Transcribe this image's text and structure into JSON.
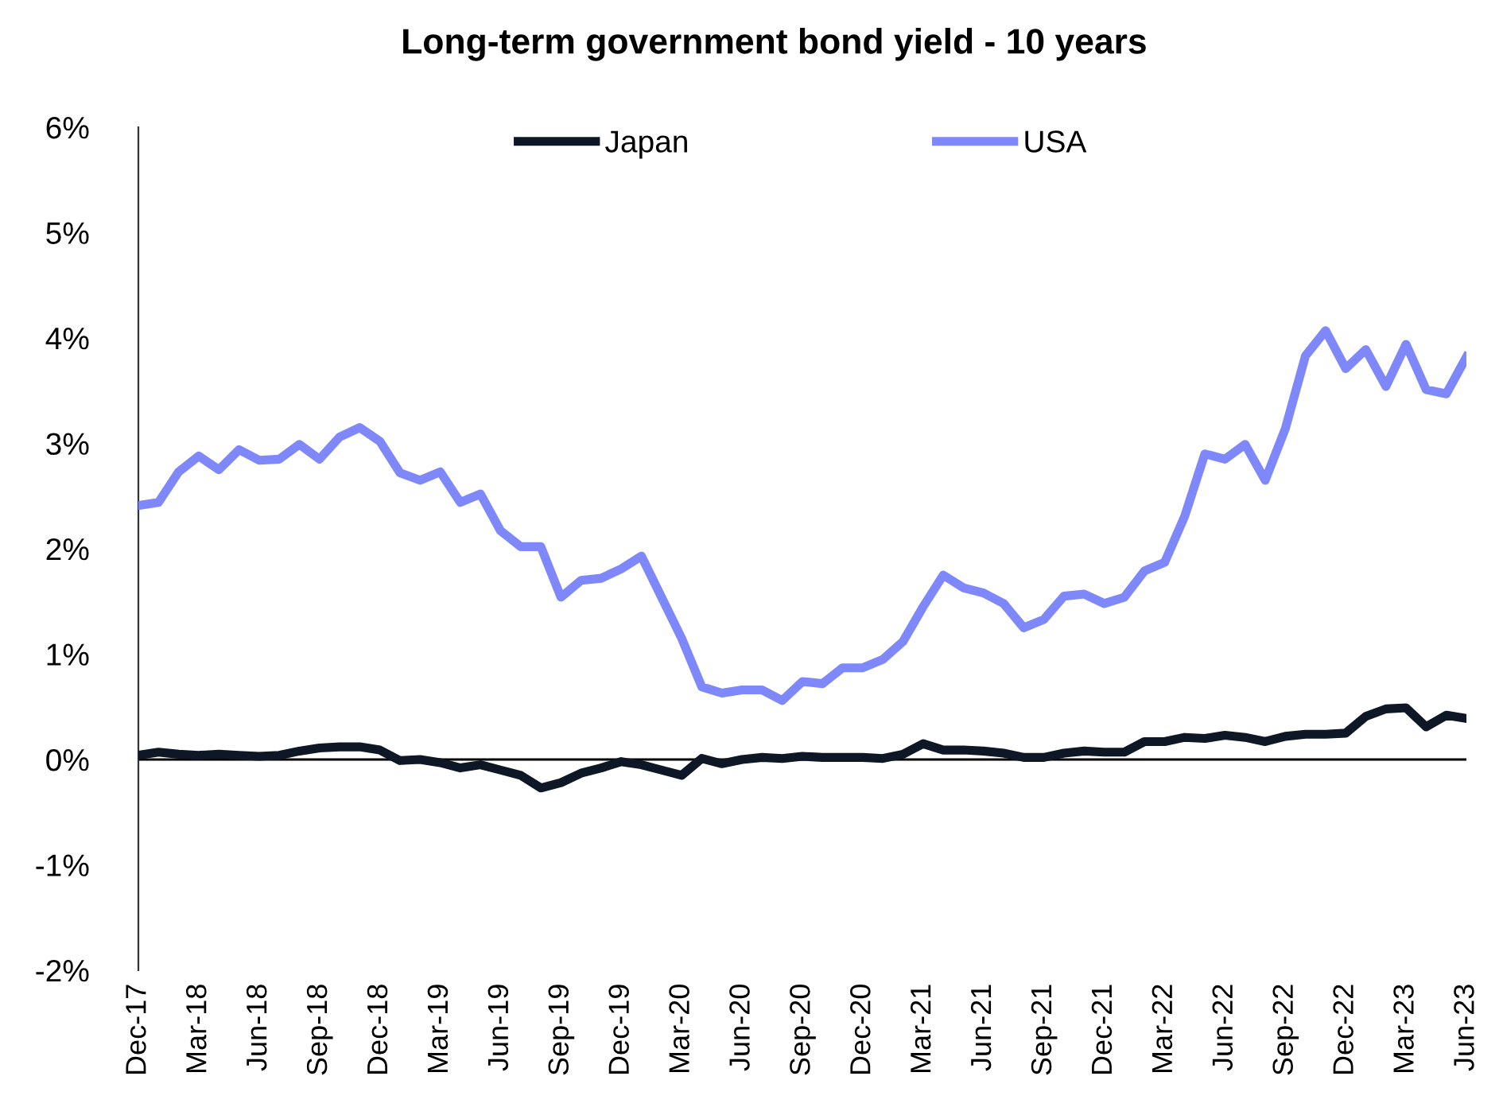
{
  "chart_data": {
    "type": "line",
    "title": "Long-term government bond yield - 10 years",
    "categories": [
      "Dec-17",
      null,
      null,
      "Mar-18",
      null,
      null,
      "Jun-18",
      null,
      null,
      "Sep-18",
      null,
      null,
      "Dec-18",
      null,
      null,
      "Mar-19",
      null,
      null,
      "Jun-19",
      null,
      null,
      "Sep-19",
      null,
      null,
      "Dec-19",
      null,
      null,
      "Mar-20",
      null,
      null,
      "Jun-20",
      null,
      null,
      "Sep-20",
      null,
      null,
      "Dec-20",
      null,
      null,
      "Mar-21",
      null,
      null,
      "Jun-21",
      null,
      null,
      "Sep-21",
      null,
      null,
      "Dec-21",
      null,
      null,
      "Mar-22",
      null,
      null,
      "Jun-22",
      null,
      null,
      "Sep-22",
      null,
      null,
      "Dec-22",
      null,
      null,
      "Mar-23",
      null,
      null,
      "Jun-23"
    ],
    "series": [
      {
        "name": "Japan",
        "color": "#0d1726",
        "values": [
          0.04,
          0.07,
          0.05,
          0.04,
          0.05,
          0.04,
          0.03,
          0.04,
          0.08,
          0.11,
          0.12,
          0.12,
          0.09,
          -0.01,
          0.0,
          -0.03,
          -0.08,
          -0.05,
          -0.1,
          -0.15,
          -0.27,
          -0.22,
          -0.13,
          -0.08,
          -0.02,
          -0.05,
          -0.1,
          -0.15,
          0.01,
          -0.04,
          0.0,
          0.02,
          0.01,
          0.03,
          0.02,
          0.02,
          0.02,
          0.01,
          0.05,
          0.15,
          0.09,
          0.09,
          0.08,
          0.06,
          0.02,
          0.02,
          0.06,
          0.08,
          0.07,
          0.07,
          0.17,
          0.17,
          0.21,
          0.2,
          0.23,
          0.21,
          0.17,
          0.22,
          0.24,
          0.24,
          0.25,
          0.41,
          0.48,
          0.49,
          0.31,
          0.42,
          0.39
        ]
      },
      {
        "name": "USA",
        "color": "#7f88fb",
        "values": [
          2.41,
          2.44,
          2.73,
          2.88,
          2.75,
          2.94,
          2.84,
          2.85,
          2.99,
          2.85,
          3.06,
          3.15,
          3.02,
          2.72,
          2.65,
          2.73,
          2.44,
          2.52,
          2.17,
          2.02,
          2.02,
          1.54,
          1.7,
          1.72,
          1.81,
          1.93,
          1.54,
          1.15,
          0.69,
          0.63,
          0.66,
          0.66,
          0.56,
          0.74,
          0.72,
          0.87,
          0.87,
          0.95,
          1.12,
          1.45,
          1.75,
          1.63,
          1.58,
          1.48,
          1.25,
          1.33,
          1.55,
          1.57,
          1.48,
          1.54,
          1.79,
          1.87,
          2.31,
          2.9,
          2.85,
          2.99,
          2.65,
          3.14,
          3.83,
          4.07,
          3.71,
          3.89,
          3.54,
          3.94,
          3.51,
          3.47,
          3.82
        ]
      }
    ],
    "ylim": [
      -2,
      6
    ],
    "yticks": [
      {
        "value": -2,
        "label": "-2%"
      },
      {
        "value": -1,
        "label": "-1%"
      },
      {
        "value": 0,
        "label": "0%"
      },
      {
        "value": 1,
        "label": "1%"
      },
      {
        "value": 2,
        "label": "2%"
      },
      {
        "value": 3,
        "label": "3%"
      },
      {
        "value": 4,
        "label": "4%"
      },
      {
        "value": 5,
        "label": "5%"
      },
      {
        "value": 6,
        "label": "6%"
      }
    ],
    "ref_lines": [
      {
        "axis": "y",
        "value": 0,
        "color": "#000000"
      }
    ],
    "grid": false,
    "legend": "top",
    "marker": "none",
    "line_style": "solid"
  }
}
